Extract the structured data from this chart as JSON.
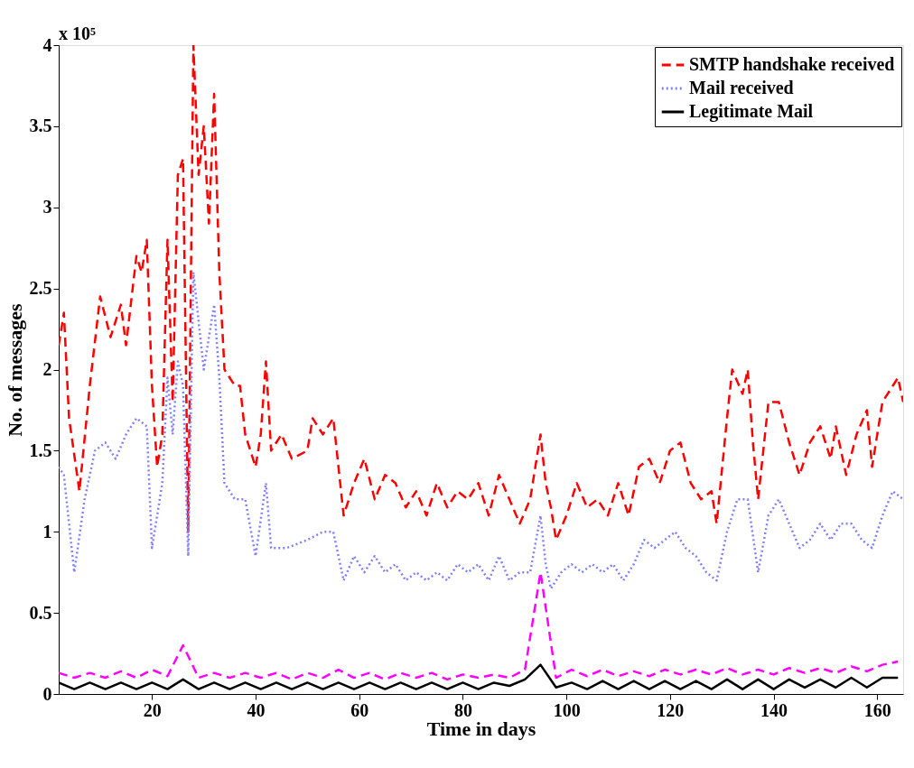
{
  "chart_data": {
    "type": "line",
    "xlabel": "Time in days",
    "ylabel": "No. of messages",
    "annotations": [
      "x 10⁵"
    ],
    "xlim": [
      2,
      165
    ],
    "xticks": [
      20,
      40,
      60,
      80,
      100,
      120,
      140,
      160
    ],
    "ylim": [
      0,
      4
    ],
    "yticks": [
      0,
      0.5,
      1,
      1.5,
      2,
      2.5,
      3,
      3.5,
      4
    ],
    "grid": false,
    "legend": "top right",
    "marker": "none",
    "series": [
      {
        "name": "SMTP handshake received",
        "color": "#ff0000",
        "line_style": "dashed",
        "x": [
          2,
          3,
          4,
          6,
          8,
          10,
          12,
          14,
          15,
          17,
          18,
          19,
          20,
          21,
          22,
          23,
          24,
          25,
          26,
          27,
          28,
          29,
          30,
          31,
          32,
          33,
          34,
          36,
          37,
          38,
          40,
          41,
          42,
          43,
          45,
          47,
          50,
          51,
          53,
          55,
          57,
          59,
          61,
          63,
          65,
          67,
          69,
          71,
          73,
          75,
          77,
          79,
          81,
          83,
          85,
          87,
          89,
          91,
          93,
          95,
          96,
          97,
          98,
          100,
          102,
          104,
          106,
          108,
          110,
          112,
          114,
          116,
          118,
          120,
          122,
          124,
          126,
          128,
          129,
          131,
          132,
          134,
          135,
          136,
          137,
          139,
          141,
          143,
          145,
          147,
          149,
          151,
          152,
          154,
          156,
          158,
          159,
          161,
          163,
          164,
          165
        ],
        "values": [
          2.15,
          2.35,
          1.7,
          1.25,
          1.9,
          2.45,
          2.2,
          2.4,
          2.15,
          2.7,
          2.6,
          2.8,
          1.9,
          1.4,
          1.6,
          2.8,
          1.8,
          3.2,
          3.3,
          1.0,
          4.0,
          3.2,
          3.5,
          2.9,
          3.7,
          2.6,
          2.0,
          1.9,
          1.9,
          1.6,
          1.4,
          1.6,
          2.05,
          1.5,
          1.6,
          1.45,
          1.5,
          1.7,
          1.6,
          1.7,
          1.1,
          1.3,
          1.45,
          1.2,
          1.35,
          1.3,
          1.15,
          1.25,
          1.1,
          1.3,
          1.15,
          1.25,
          1.2,
          1.3,
          1.1,
          1.35,
          1.2,
          1.05,
          1.2,
          1.6,
          1.3,
          1.15,
          0.95,
          1.1,
          1.3,
          1.15,
          1.2,
          1.1,
          1.3,
          1.1,
          1.4,
          1.45,
          1.3,
          1.5,
          1.55,
          1.3,
          1.2,
          1.25,
          1.05,
          1.7,
          2.0,
          1.85,
          2.0,
          1.55,
          1.2,
          1.8,
          1.8,
          1.55,
          1.35,
          1.55,
          1.65,
          1.45,
          1.65,
          1.35,
          1.6,
          1.75,
          1.4,
          1.8,
          1.9,
          1.95,
          1.8
        ]
      },
      {
        "name": "Mail received",
        "color": "#8080ff",
        "line_style": "dotted",
        "x": [
          2,
          3,
          5,
          7,
          9,
          11,
          13,
          15,
          17,
          19,
          20,
          22,
          23,
          24,
          25,
          26,
          27,
          28,
          29,
          30,
          31,
          32,
          33,
          34,
          36,
          38,
          40,
          42,
          43,
          46,
          50,
          53,
          55,
          57,
          59,
          61,
          63,
          65,
          67,
          69,
          71,
          73,
          75,
          77,
          79,
          81,
          83,
          85,
          87,
          89,
          91,
          93,
          95,
          96,
          97,
          99,
          101,
          103,
          105,
          107,
          109,
          111,
          113,
          115,
          117,
          119,
          121,
          123,
          125,
          127,
          129,
          131,
          133,
          135,
          137,
          139,
          141,
          143,
          145,
          147,
          149,
          151,
          153,
          155,
          157,
          159,
          161,
          163,
          165
        ],
        "values": [
          1.4,
          1.35,
          0.75,
          1.2,
          1.5,
          1.55,
          1.45,
          1.6,
          1.7,
          1.65,
          0.9,
          1.3,
          1.95,
          1.6,
          2.05,
          1.9,
          0.85,
          2.6,
          2.3,
          2.0,
          2.2,
          2.4,
          1.95,
          1.3,
          1.2,
          1.2,
          0.85,
          1.3,
          0.9,
          0.9,
          0.95,
          1.0,
          1.0,
          0.7,
          0.85,
          0.75,
          0.85,
          0.75,
          0.8,
          0.7,
          0.75,
          0.7,
          0.75,
          0.7,
          0.8,
          0.75,
          0.8,
          0.7,
          0.85,
          0.7,
          0.75,
          0.75,
          1.1,
          0.8,
          0.65,
          0.75,
          0.8,
          0.75,
          0.8,
          0.75,
          0.8,
          0.7,
          0.8,
          0.95,
          0.9,
          0.95,
          1.0,
          0.9,
          0.85,
          0.75,
          0.7,
          1.0,
          1.2,
          1.2,
          0.75,
          1.1,
          1.2,
          1.05,
          0.9,
          0.95,
          1.05,
          0.95,
          1.05,
          1.05,
          0.95,
          0.9,
          1.1,
          1.25,
          1.2
        ]
      },
      {
        "color": "#ff00ff",
        "line_style": "dashed",
        "x": [
          2,
          5,
          8,
          11,
          14,
          17,
          20,
          23,
          26,
          29,
          32,
          35,
          38,
          41,
          44,
          47,
          50,
          53,
          56,
          59,
          62,
          65,
          68,
          71,
          74,
          77,
          80,
          83,
          86,
          89,
          92,
          95,
          98,
          101,
          104,
          107,
          110,
          113,
          116,
          119,
          122,
          125,
          128,
          131,
          134,
          137,
          140,
          143,
          146,
          149,
          152,
          155,
          158,
          161,
          164
        ],
        "values": [
          0.13,
          0.1,
          0.13,
          0.1,
          0.14,
          0.1,
          0.15,
          0.11,
          0.3,
          0.1,
          0.13,
          0.1,
          0.13,
          0.1,
          0.13,
          0.09,
          0.13,
          0.1,
          0.15,
          0.1,
          0.13,
          0.09,
          0.13,
          0.1,
          0.13,
          0.09,
          0.12,
          0.1,
          0.12,
          0.1,
          0.15,
          0.75,
          0.1,
          0.15,
          0.11,
          0.15,
          0.11,
          0.14,
          0.11,
          0.15,
          0.12,
          0.15,
          0.12,
          0.16,
          0.12,
          0.15,
          0.12,
          0.16,
          0.13,
          0.16,
          0.13,
          0.17,
          0.14,
          0.18,
          0.2
        ]
      },
      {
        "name": "Legitimate Mail",
        "color": "#000000",
        "line_style": "solid",
        "x": [
          2,
          5,
          8,
          11,
          14,
          17,
          20,
          23,
          26,
          29,
          32,
          35,
          38,
          41,
          44,
          47,
          50,
          53,
          56,
          59,
          62,
          65,
          68,
          71,
          74,
          77,
          80,
          83,
          86,
          89,
          92,
          95,
          98,
          101,
          104,
          107,
          110,
          113,
          116,
          119,
          122,
          125,
          128,
          131,
          134,
          137,
          140,
          143,
          146,
          149,
          152,
          155,
          158,
          161,
          164
        ],
        "values": [
          0.07,
          0.03,
          0.07,
          0.03,
          0.07,
          0.03,
          0.07,
          0.03,
          0.09,
          0.03,
          0.07,
          0.03,
          0.07,
          0.03,
          0.07,
          0.03,
          0.07,
          0.03,
          0.07,
          0.03,
          0.07,
          0.03,
          0.07,
          0.03,
          0.07,
          0.03,
          0.07,
          0.03,
          0.07,
          0.05,
          0.09,
          0.18,
          0.04,
          0.07,
          0.03,
          0.08,
          0.03,
          0.08,
          0.03,
          0.08,
          0.03,
          0.08,
          0.03,
          0.09,
          0.03,
          0.09,
          0.03,
          0.09,
          0.04,
          0.09,
          0.04,
          0.1,
          0.04,
          0.1,
          0.1
        ]
      }
    ]
  }
}
